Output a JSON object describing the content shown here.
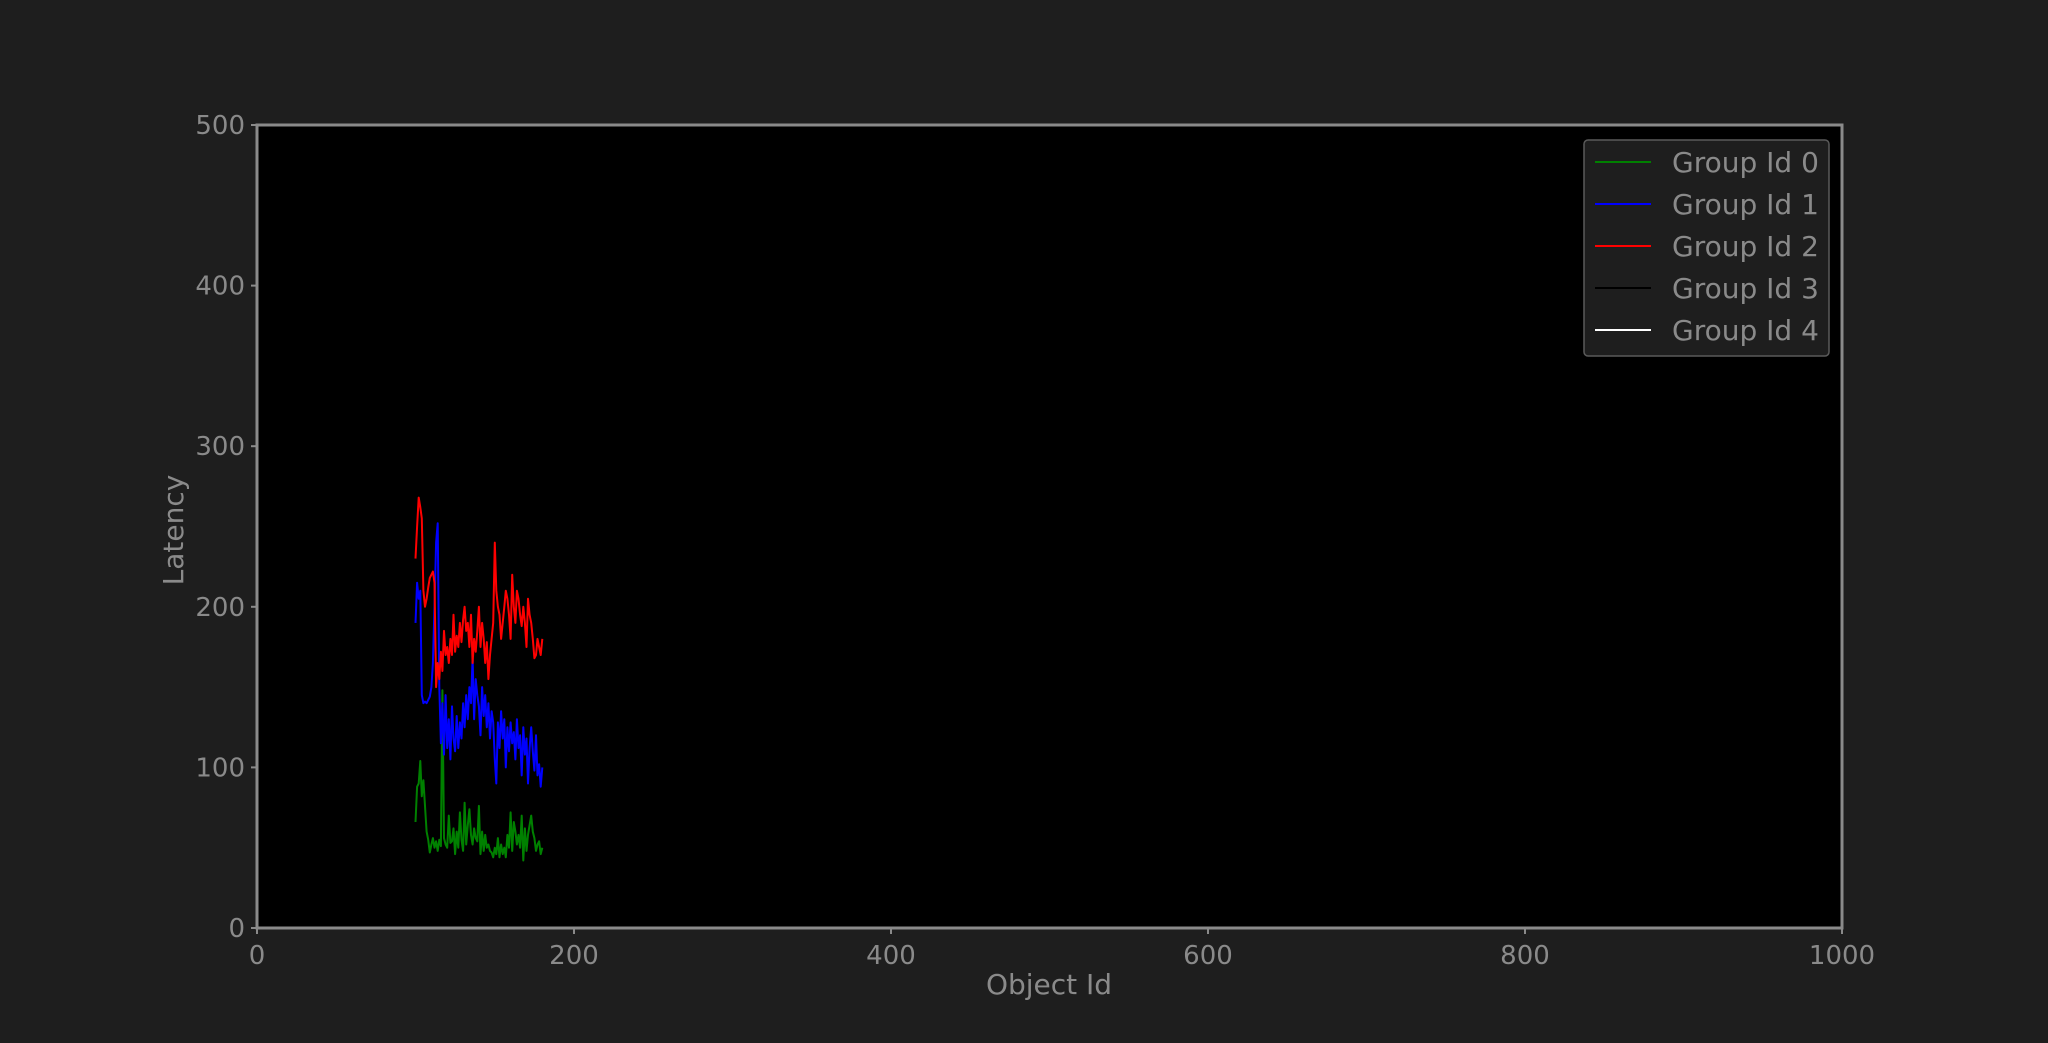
{
  "chart_data": {
    "type": "line",
    "title": "",
    "xlabel": "Object Id",
    "ylabel": "Latency",
    "xlim": [
      0,
      1000
    ],
    "ylim": [
      0,
      500
    ],
    "xticks": [
      0,
      200,
      400,
      600,
      800,
      1000
    ],
    "yticks": [
      0,
      100,
      200,
      300,
      400,
      500
    ],
    "grid": false,
    "legend_position": "top-right",
    "colors": {
      "background": "#1e1e1e",
      "plot_background": "#000000",
      "frame": "#8a8a8a",
      "text": "#8a8a8a"
    },
    "series": [
      {
        "name": "Group Id 0",
        "color": "#008000",
        "x": [
          100,
          101,
          102,
          103,
          104,
          105,
          106,
          107,
          108,
          109,
          110,
          111,
          112,
          113,
          114,
          115,
          116,
          117,
          118,
          119,
          120,
          121,
          122,
          123,
          124,
          125,
          126,
          127,
          128,
          129,
          130,
          131,
          132,
          133,
          134,
          135,
          136,
          137,
          138,
          139,
          140,
          141,
          142,
          143,
          144,
          145,
          146,
          147,
          148,
          149,
          150,
          151,
          152,
          153,
          154,
          155,
          156,
          157,
          158,
          159,
          160,
          161,
          162,
          163,
          164,
          165,
          166,
          167,
          168,
          169,
          170,
          171,
          172,
          173,
          174,
          175,
          176,
          177,
          178,
          179,
          180
        ],
        "y": [
          66,
          88,
          90,
          104,
          82,
          92,
          76,
          60,
          55,
          47,
          52,
          56,
          50,
          54,
          48,
          55,
          51,
          148,
          56,
          52,
          50,
          70,
          53,
          54,
          62,
          46,
          60,
          50,
          72,
          55,
          48,
          78,
          52,
          64,
          74,
          58,
          52,
          62,
          56,
          54,
          76,
          46,
          60,
          48,
          58,
          50,
          52,
          48,
          47,
          44,
          50,
          46,
          56,
          44,
          52,
          46,
          50,
          44,
          58,
          50,
          72,
          48,
          66,
          60,
          52,
          58,
          50,
          70,
          42,
          62,
          48,
          58,
          64,
          70,
          60,
          56,
          48,
          52,
          54,
          46,
          50
        ]
      },
      {
        "name": "Group Id 1",
        "color": "#0000ff",
        "x": [
          100,
          101,
          102,
          103,
          104,
          105,
          106,
          107,
          108,
          109,
          110,
          111,
          112,
          113,
          114,
          115,
          116,
          117,
          118,
          119,
          120,
          121,
          122,
          123,
          124,
          125,
          126,
          127,
          128,
          129,
          130,
          131,
          132,
          133,
          134,
          135,
          136,
          137,
          138,
          139,
          140,
          141,
          142,
          143,
          144,
          145,
          146,
          147,
          148,
          149,
          150,
          151,
          152,
          153,
          154,
          155,
          156,
          157,
          158,
          159,
          160,
          161,
          162,
          163,
          164,
          165,
          166,
          167,
          168,
          169,
          170,
          171,
          172,
          173,
          174,
          175,
          176,
          177,
          178,
          179,
          180
        ],
        "y": [
          190,
          215,
          205,
          210,
          145,
          140,
          141,
          140,
          142,
          144,
          150,
          165,
          200,
          240,
          252,
          150,
          115,
          140,
          108,
          145,
          112,
          130,
          105,
          138,
          118,
          110,
          132,
          112,
          128,
          118,
          140,
          125,
          145,
          130,
          150,
          140,
          168,
          130,
          155,
          145,
          138,
          120,
          150,
          132,
          145,
          125,
          140,
          118,
          135,
          128,
          105,
          90,
          128,
          112,
          135,
          118,
          130,
          100,
          125,
          110,
          128,
          115,
          122,
          105,
          130,
          112,
          120,
          95,
          125,
          108,
          118,
          90,
          112,
          125,
          110,
          98,
          120,
          95,
          102,
          88,
          100
        ]
      },
      {
        "name": "Group Id 2",
        "color": "#ff0000",
        "x": [
          100,
          101,
          102,
          103,
          104,
          105,
          106,
          107,
          108,
          109,
          110,
          111,
          112,
          113,
          114,
          115,
          116,
          117,
          118,
          119,
          120,
          121,
          122,
          123,
          124,
          125,
          126,
          127,
          128,
          129,
          130,
          131,
          132,
          133,
          134,
          135,
          136,
          137,
          138,
          139,
          140,
          141,
          142,
          143,
          144,
          145,
          146,
          147,
          148,
          149,
          150,
          151,
          152,
          153,
          154,
          155,
          156,
          157,
          158,
          159,
          160,
          161,
          162,
          163,
          164,
          165,
          166,
          167,
          168,
          169,
          170,
          171,
          172,
          173,
          174,
          175,
          176,
          177,
          178,
          179,
          180
        ],
        "y": [
          230,
          250,
          268,
          262,
          255,
          210,
          200,
          205,
          212,
          218,
          220,
          222,
          215,
          150,
          165,
          155,
          172,
          160,
          185,
          170,
          175,
          165,
          180,
          170,
          195,
          172,
          182,
          175,
          190,
          178,
          192,
          200,
          185,
          190,
          175,
          195,
          165,
          180,
          172,
          185,
          200,
          175,
          190,
          180,
          165,
          178,
          155,
          170,
          180,
          190,
          240,
          210,
          200,
          195,
          180,
          190,
          200,
          210,
          205,
          195,
          180,
          220,
          200,
          190,
          210,
          205,
          195,
          188,
          200,
          190,
          175,
          205,
          195,
          190,
          180,
          168,
          170,
          180,
          175,
          170,
          180
        ]
      },
      {
        "name": "Group Id 3",
        "color": "#000000",
        "x": [],
        "y": []
      },
      {
        "name": "Group Id 4",
        "color": "#ffffff",
        "x": [],
        "y": []
      }
    ]
  }
}
